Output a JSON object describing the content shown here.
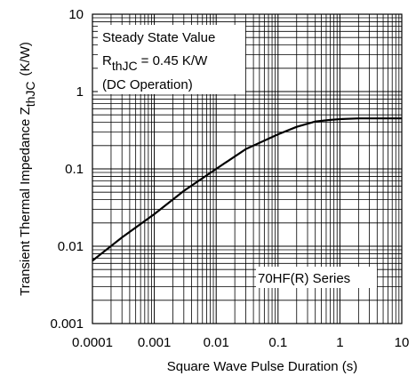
{
  "chart_data": {
    "type": "line",
    "xscale": "log",
    "yscale": "log",
    "xlim": [
      0.0001,
      10
    ],
    "ylim": [
      0.001,
      10
    ],
    "xticks": [
      "0.0001",
      "0.001",
      "0.01",
      "0.1",
      "1",
      "10"
    ],
    "yticks": [
      "0.001",
      "0.01",
      "0.1",
      "1",
      "10"
    ],
    "xlabel": "Square Wave Pulse Duration (s)",
    "ylabel": {
      "main": "Transient Thermal Impedance Z",
      "sub": "thJC",
      "unit": "(K/W)"
    },
    "grid": true,
    "series": [
      {
        "x": [
          0.0001,
          0.0003,
          0.001,
          0.003,
          0.01,
          0.03,
          0.1,
          0.2,
          0.4,
          0.7,
          1,
          2,
          5,
          10
        ],
        "y": [
          0.0065,
          0.013,
          0.026,
          0.052,
          0.1,
          0.18,
          0.28,
          0.35,
          0.41,
          0.43,
          0.44,
          0.45,
          0.45,
          0.45
        ]
      }
    ],
    "annotations": {
      "steady_title": "Steady State Value",
      "rth_main": "R",
      "rth_sub": "thJC",
      "rth_value": "= 0.45 K/W",
      "operation": "(DC Operation)",
      "series_label": "70HF(R) Series"
    }
  }
}
